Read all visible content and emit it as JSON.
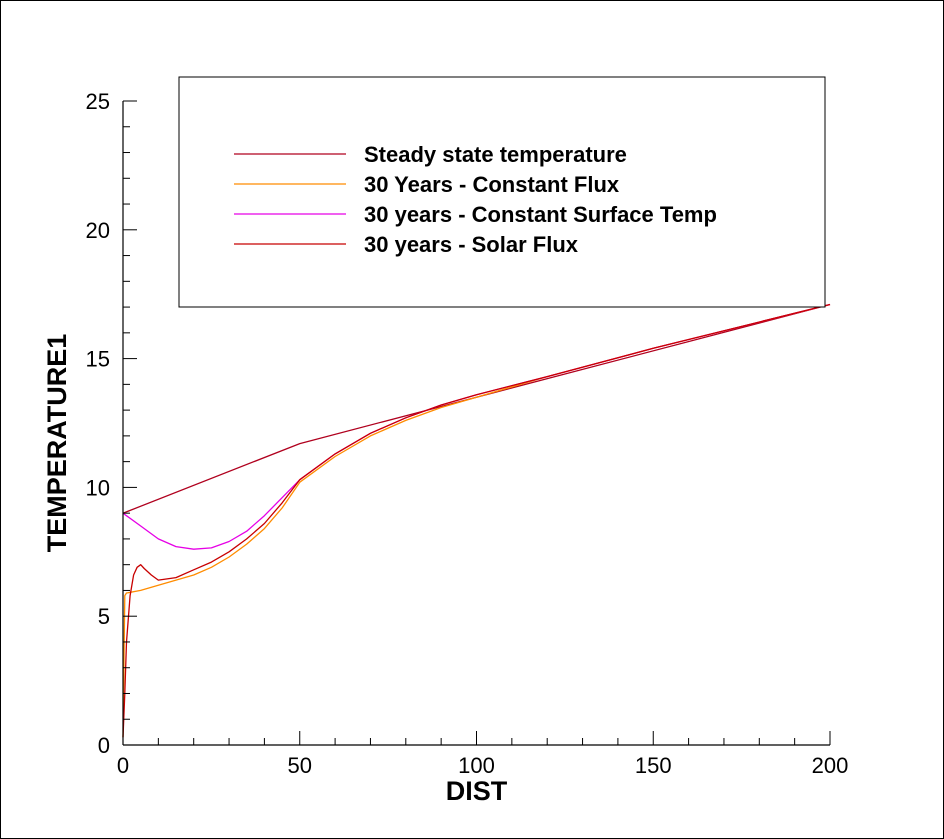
{
  "chart_data": {
    "type": "line",
    "xlabel": "DIST",
    "ylabel": "TEMPERATURE1",
    "xlim": [
      0,
      200
    ],
    "ylim": [
      0,
      25
    ],
    "x_ticks": [
      0,
      50,
      100,
      150,
      200
    ],
    "y_ticks": [
      0,
      5,
      10,
      15,
      20,
      25
    ],
    "x_minor_step": 10,
    "y_minor_step": 1,
    "legend_position": "top",
    "series": [
      {
        "name": "Steady state temperature",
        "color": "#b0001e",
        "x": [
          0,
          50,
          100,
          200
        ],
        "y": [
          9.0,
          11.7,
          13.5,
          17.1
        ]
      },
      {
        "name": "30 Years - Constant Flux",
        "color": "#ff8c00",
        "x": [
          0,
          0.5,
          1,
          5,
          10,
          15,
          20,
          25,
          30,
          35,
          40,
          45,
          50,
          60,
          70,
          80,
          90,
          100,
          120,
          150,
          200
        ],
        "y": [
          0.3,
          5.8,
          5.9,
          6.0,
          6.2,
          6.4,
          6.6,
          6.9,
          7.3,
          7.8,
          8.4,
          9.2,
          10.2,
          11.2,
          12.0,
          12.6,
          13.1,
          13.5,
          14.3,
          15.4,
          17.1
        ]
      },
      {
        "name": "30 years - Constant Surface Temp",
        "color": "#e600e6",
        "x": [
          0,
          5,
          10,
          15,
          20,
          25,
          30,
          35,
          40,
          45,
          50,
          60,
          70,
          80,
          90,
          100,
          120,
          150,
          200
        ],
        "y": [
          9.0,
          8.5,
          8.0,
          7.7,
          7.6,
          7.65,
          7.9,
          8.3,
          8.9,
          9.6,
          10.3,
          11.3,
          12.1,
          12.7,
          13.2,
          13.6,
          14.3,
          15.4,
          17.1
        ]
      },
      {
        "name": "30 years - Solar Flux",
        "color": "#c80000",
        "x": [
          0,
          0.5,
          1,
          2,
          3,
          4,
          5,
          6,
          8,
          10,
          15,
          20,
          25,
          30,
          35,
          40,
          45,
          50,
          60,
          70,
          80,
          90,
          100,
          120,
          150,
          200
        ],
        "y": [
          0.3,
          2.0,
          4.0,
          5.8,
          6.6,
          6.9,
          7.0,
          6.85,
          6.6,
          6.4,
          6.5,
          6.8,
          7.1,
          7.5,
          8.0,
          8.6,
          9.4,
          10.3,
          11.3,
          12.1,
          12.7,
          13.2,
          13.6,
          14.3,
          15.4,
          17.1
        ]
      }
    ]
  }
}
